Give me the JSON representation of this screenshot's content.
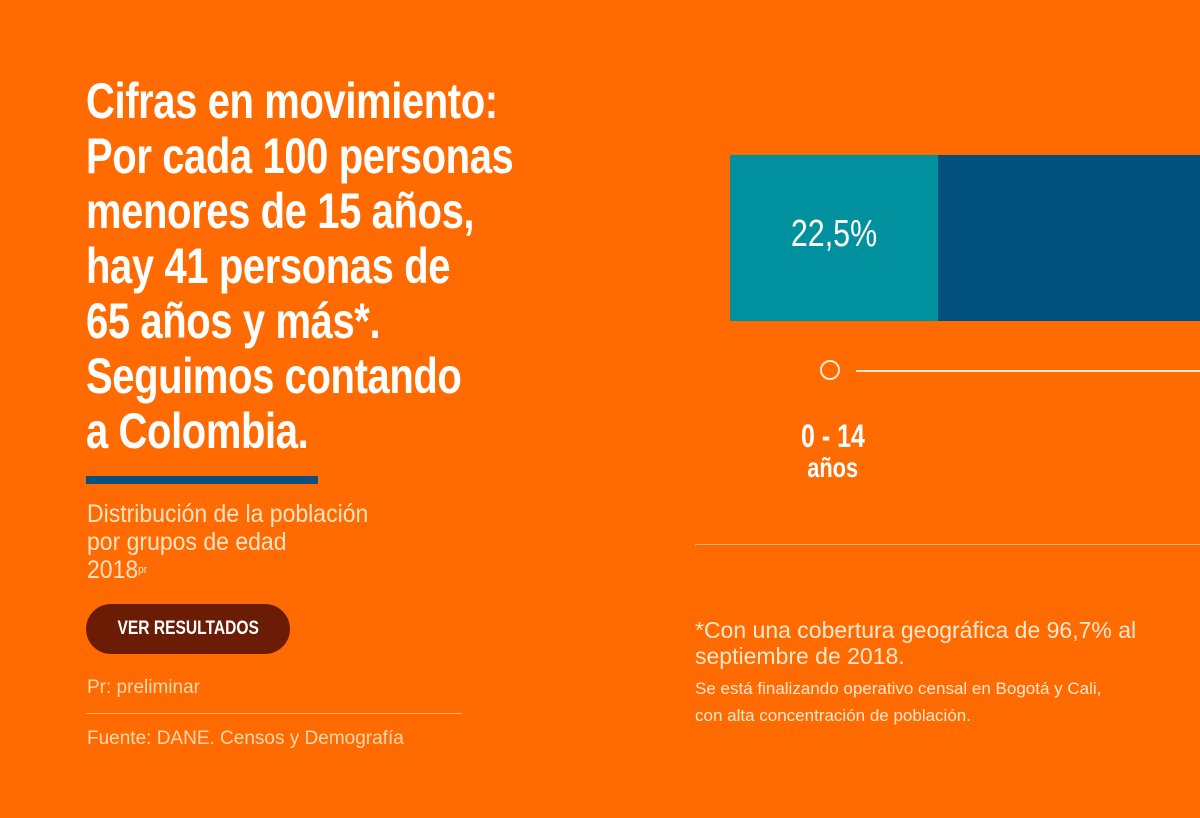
{
  "headline": [
    "Cifras en movimiento:",
    "Por cada 100 personas",
    "menores de 15 años,",
    "hay 41 personas de",
    "65 años y más*.",
    "Seguimos contando",
    "a Colombia."
  ],
  "subtitle": {
    "line1": "Distribución de la población",
    "line2": "por grupos de edad",
    "year": "2018",
    "year_sup": "pr"
  },
  "button": {
    "label": "VER RESULTADOS"
  },
  "pr_note": "Pr: preliminar",
  "source": "Fuente: DANE. Censos y Demografía",
  "chart": {
    "segments": [
      {
        "value_label": "22,5%",
        "value": 22.5,
        "group": "0 - 14",
        "unit": "años",
        "color": "#01909d"
      },
      {
        "color": "#02507c"
      }
    ]
  },
  "footnote": {
    "line1": "*Con una cobertura geográfica de 96,7% al",
    "line2": "septiembre de 2018.",
    "line3": "Se está finalizando operativo censal en Bogotá y Cali,",
    "line4": "con alta concentración de población."
  },
  "colors": {
    "background": "#ff6b00",
    "underline": "#0b4f80",
    "button": "#6a1c05"
  }
}
